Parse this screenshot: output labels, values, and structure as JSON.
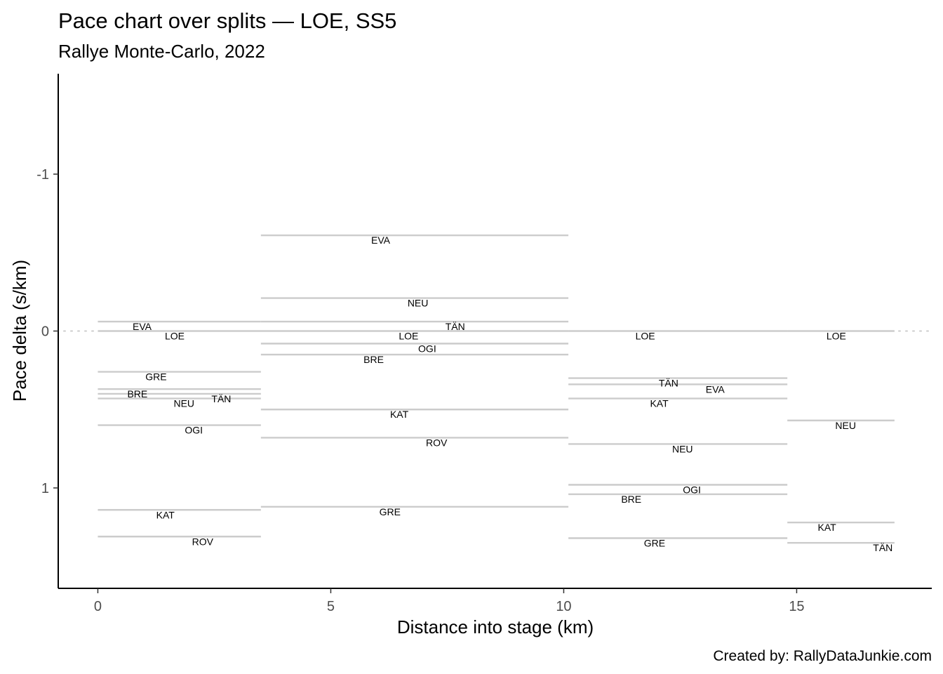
{
  "chart_data": {
    "type": "line",
    "title": "Pace chart over splits — LOE, SS5",
    "subtitle": "Rallye Monte-Carlo, 2022",
    "xlabel": "Distance into stage (km)",
    "ylabel": "Pace delta (s/km)",
    "caption": "Created by: RallyDataJunkie.com",
    "xlim": [
      -0.85,
      17.9
    ],
    "ylim": [
      -1.64,
      1.64
    ],
    "y_reversed": true,
    "x_ticks": [
      0,
      5,
      10,
      15
    ],
    "y_ticks": [
      -1,
      0,
      1
    ],
    "x_tick_labels": [
      "0",
      "5",
      "10",
      "15"
    ],
    "y_tick_labels": [
      "-1",
      "0",
      "1"
    ],
    "reference_line": 0,
    "grid": false,
    "splits": [
      {
        "start": 0,
        "end": 3.5,
        "label_x": [
          0.95,
          1.65,
          1.25,
          0.85,
          1.85,
          2.65,
          2.06,
          1.45,
          2.25
        ]
      },
      {
        "start": 3.5,
        "end": 10.1,
        "label_x": [
          6.07,
          6.87,
          7.67,
          6.67,
          7.07,
          5.92,
          6.47,
          7.27,
          6.27
        ]
      },
      {
        "start": 10.1,
        "end": 14.8,
        "label_x": [
          11.75,
          12.25,
          13.25,
          12.05,
          12.55,
          12.75,
          11.45,
          11.95
        ]
      },
      {
        "start": 14.8,
        "end": 17.1,
        "label_x": [
          15.85,
          16.05,
          15.65,
          16.85
        ]
      }
    ],
    "series": [
      {
        "split": 0,
        "drivers": [
          "EVA",
          "LOE",
          "GRE",
          "BRE",
          "NEU",
          "TÄN",
          "OGI",
          "KAT",
          "ROV"
        ],
        "values": [
          -0.06,
          0.0,
          0.26,
          0.37,
          0.43,
          0.4,
          0.6,
          1.14,
          1.31
        ]
      },
      {
        "split": 1,
        "drivers": [
          "EVA",
          "NEU",
          "TÄN",
          "LOE",
          "OGI",
          "BRE",
          "KAT",
          "ROV",
          "GRE"
        ],
        "values": [
          -0.61,
          -0.21,
          -0.06,
          0.0,
          0.08,
          0.15,
          0.5,
          0.68,
          1.12
        ]
      },
      {
        "split": 2,
        "drivers": [
          "LOE",
          "TÄN",
          "EVA",
          "KAT",
          "NEU",
          "OGI",
          "BRE",
          "GRE"
        ],
        "values": [
          0.0,
          0.3,
          0.34,
          0.43,
          0.72,
          0.98,
          1.04,
          1.32
        ]
      },
      {
        "split": 3,
        "drivers": [
          "LOE",
          "NEU",
          "KAT",
          "TÄN"
        ],
        "values": [
          0.0,
          0.57,
          1.22,
          1.35
        ]
      }
    ]
  }
}
